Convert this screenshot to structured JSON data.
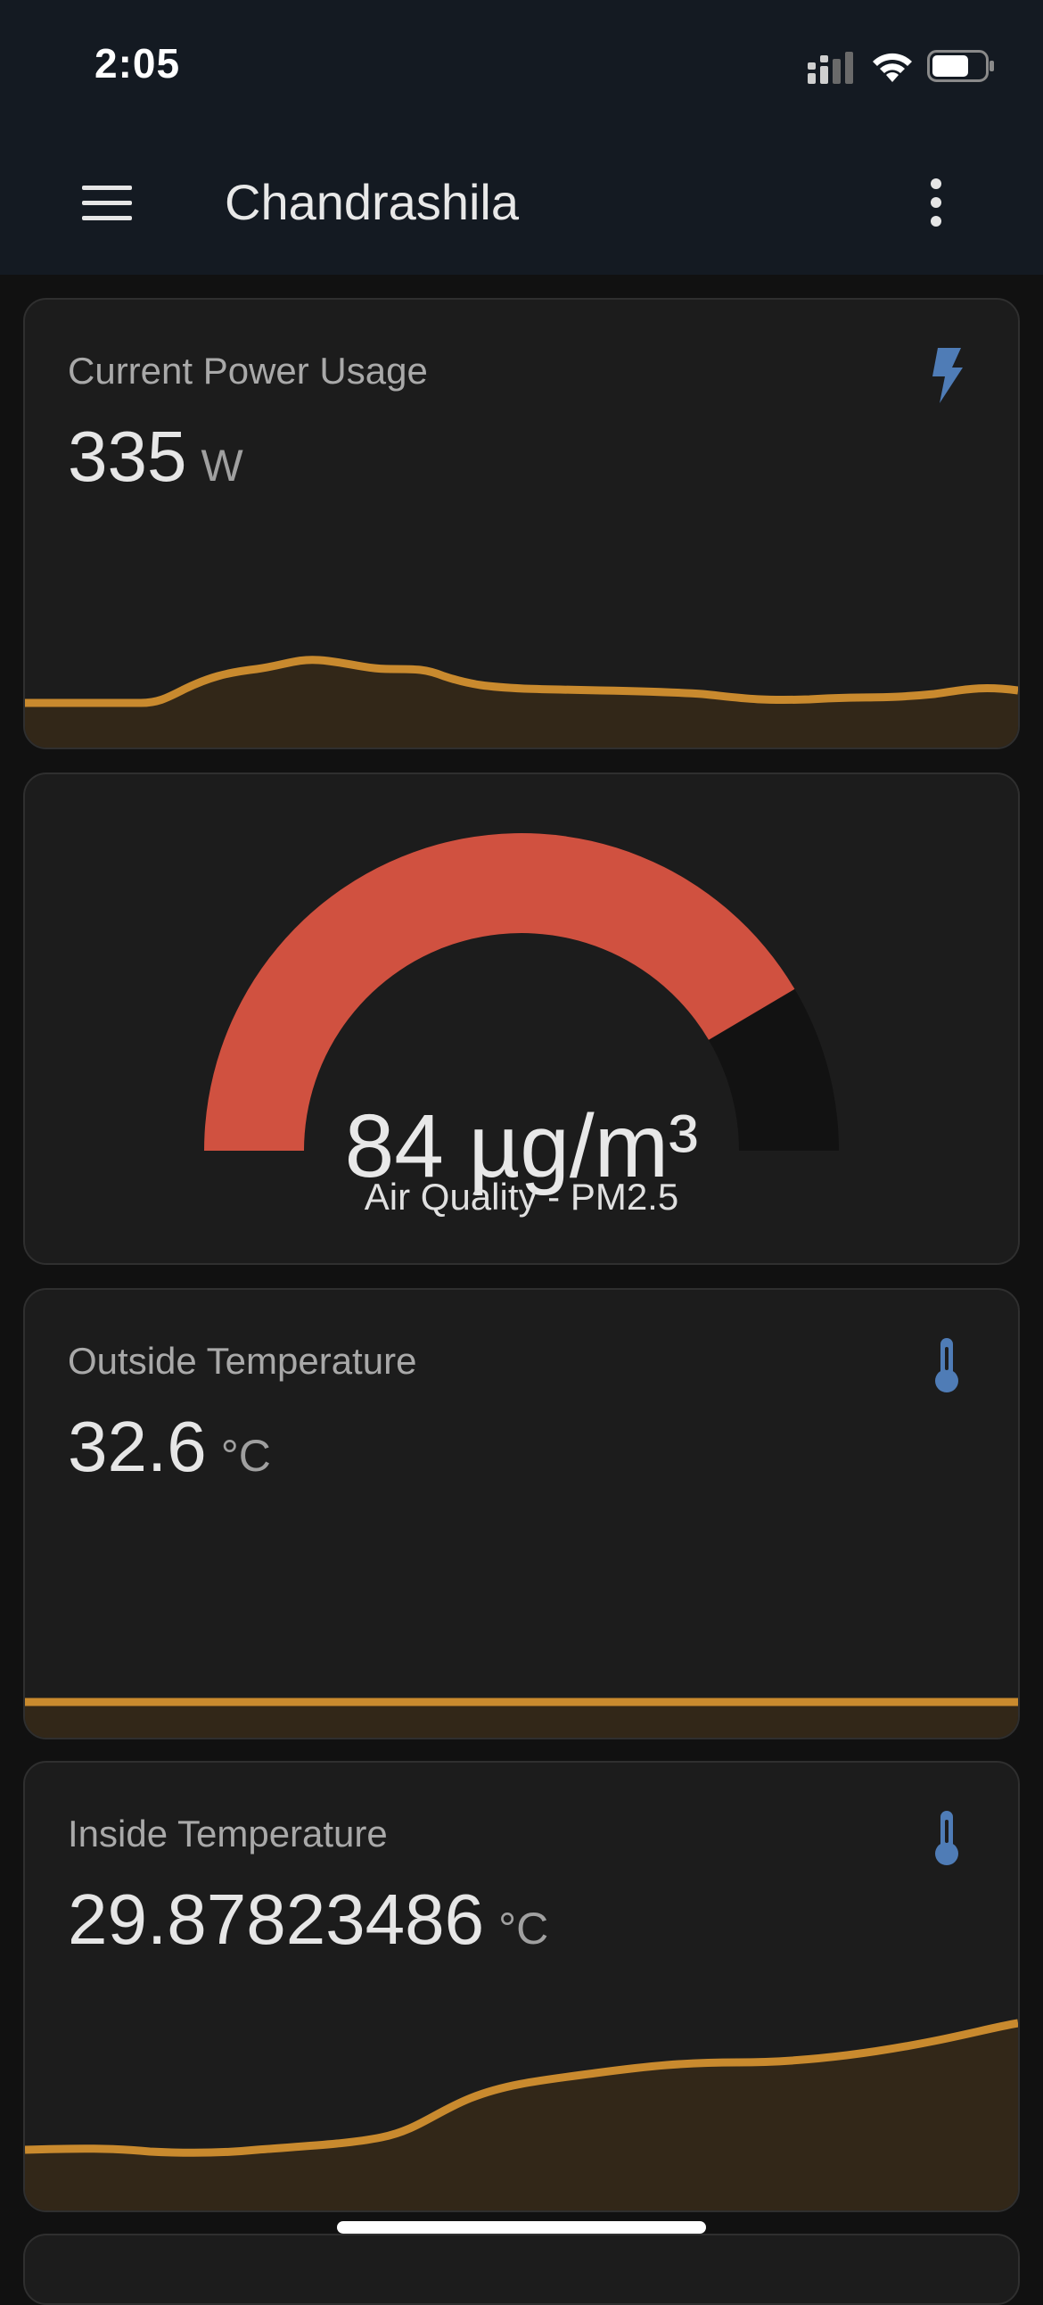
{
  "status_bar": {
    "time": "2:05",
    "icons": [
      "cellular-signal-icon",
      "wifi-icon",
      "battery-icon"
    ]
  },
  "app_bar": {
    "title": "Chandrashila",
    "menu_icon": "hamburger-menu-icon",
    "overflow_icon": "more-vert-icon"
  },
  "colors": {
    "background": "#111111",
    "bar": "#141a22",
    "card": "#1c1c1c",
    "accent_line": "#c98a2e",
    "gauge_fill": "#d05140",
    "gauge_track": "#121212",
    "icon": "#4f7cb6"
  },
  "cards": {
    "power": {
      "label": "Current Power Usage",
      "value": "335",
      "unit": "W",
      "icon": "flash-icon"
    },
    "air_quality": {
      "value": "84 µg/m³",
      "name": "Air Quality - PM2.5",
      "gauge_fraction": 0.83
    },
    "outside_temp": {
      "label": "Outside Temperature",
      "value": "32.6",
      "unit": "°C",
      "icon": "thermometer-icon"
    },
    "inside_temp": {
      "label": "Inside Temperature",
      "value": "29.87823486",
      "unit": "°C",
      "icon": "thermometer-icon"
    }
  }
}
